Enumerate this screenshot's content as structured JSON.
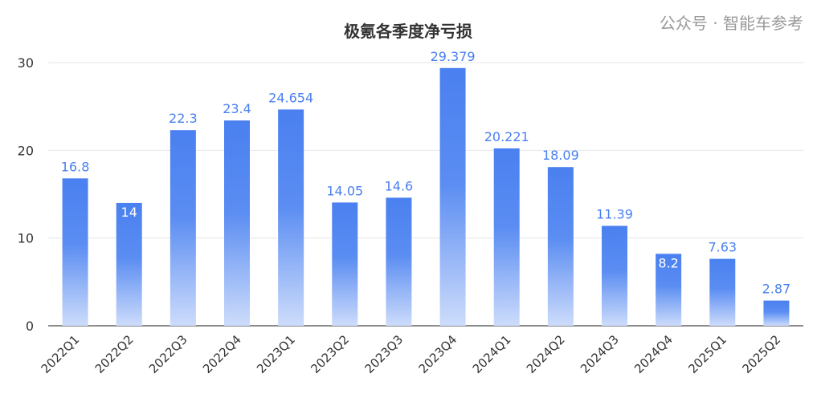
{
  "chart_data": {
    "type": "bar",
    "title": "极氪各季度净亏损",
    "categories": [
      "2022Q1",
      "2022Q2",
      "2022Q3",
      "2022Q4",
      "2023Q1",
      "2023Q2",
      "2023Q3",
      "2023Q4",
      "2024Q1",
      "2024Q2",
      "2024Q3",
      "2024Q4",
      "2025Q1",
      "2025Q2"
    ],
    "values": [
      16.8,
      14,
      22.3,
      23.4,
      24.654,
      14.05,
      14.6,
      29.379,
      20.221,
      18.09,
      11.39,
      8.2,
      7.63,
      2.87
    ],
    "data_labels": [
      "16.8",
      "14",
      "22.3",
      "23.4",
      "24.654",
      "14.05",
      "14.6",
      "29.379",
      "20.221",
      "18.09",
      "11.39",
      "8.2",
      "7.63",
      "2.87"
    ],
    "inside_labels": [
      "14",
      "8.2"
    ],
    "yticks": [
      0,
      10,
      20,
      30
    ],
    "ylim": [
      0,
      30
    ],
    "grid": true,
    "xlabel": "",
    "ylabel": "",
    "colors": {
      "bar_top": "#4a80f0",
      "bar_bottom": "#c9d9fb",
      "label": "#4a80f0",
      "grid": "#e6e6e6"
    }
  },
  "watermark": "公众号 · 智能车参考"
}
